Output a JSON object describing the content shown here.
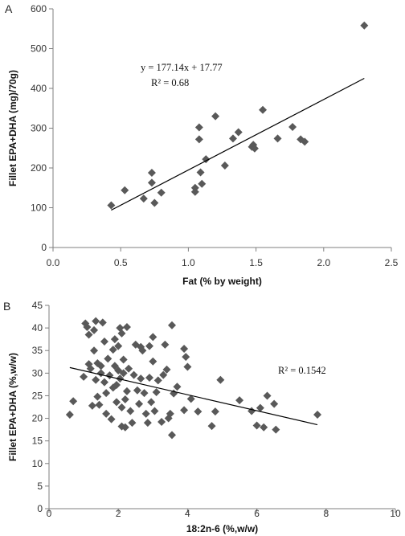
{
  "chart_data": [
    {
      "type": "scatter",
      "panel_label": "A",
      "xlabel": "Fat (% by weight)",
      "ylabel": "Fillet EPA+DHA  (mg)/70g)",
      "xlim": [
        0,
        2.5
      ],
      "ylim": [
        0,
        600
      ],
      "xticks": [
        0,
        0.5,
        1,
        1.5,
        2,
        2.5
      ],
      "yticks": [
        0,
        100,
        200,
        300,
        400,
        500,
        600
      ],
      "xtick_labels": [
        "0.0",
        "0.5",
        "1.0",
        "1.5",
        "2.0",
        "2.5"
      ],
      "ytick_labels": [
        "0",
        "100",
        "200",
        "300",
        "400",
        "500",
        "600"
      ],
      "grid": false,
      "marker": "diamond",
      "marker_color": "#595959",
      "equation": "y = 177.14x + 17.77",
      "r2": "R² = 0.68",
      "trendline": {
        "slope": 177.14,
        "intercept": 17.77,
        "x_range": [
          0.43,
          2.3
        ]
      },
      "points": [
        [
          0.43,
          106
        ],
        [
          0.53,
          144
        ],
        [
          0.67,
          123
        ],
        [
          0.73,
          188
        ],
        [
          0.73,
          163
        ],
        [
          0.75,
          112
        ],
        [
          0.8,
          138
        ],
        [
          1.05,
          150
        ],
        [
          1.05,
          140
        ],
        [
          1.08,
          302
        ],
        [
          1.08,
          272
        ],
        [
          1.09,
          189
        ],
        [
          1.1,
          160
        ],
        [
          1.13,
          222
        ],
        [
          1.2,
          330
        ],
        [
          1.27,
          206
        ],
        [
          1.33,
          274
        ],
        [
          1.37,
          290
        ],
        [
          1.47,
          253
        ],
        [
          1.48,
          258
        ],
        [
          1.49,
          249
        ],
        [
          1.55,
          346
        ],
        [
          1.66,
          274
        ],
        [
          1.77,
          303
        ],
        [
          1.83,
          272
        ],
        [
          1.86,
          266
        ],
        [
          2.3,
          558
        ]
      ]
    },
    {
      "type": "scatter",
      "panel_label": "B",
      "xlabel": "18:2n-6 (%,w/w)",
      "ylabel": "Fillet EPA+DHA (%,w/w)",
      "xlim": [
        0,
        10
      ],
      "ylim": [
        0,
        45
      ],
      "xticks": [
        0,
        2,
        4,
        6,
        8,
        10
      ],
      "yticks": [
        0,
        5,
        10,
        15,
        20,
        25,
        30,
        35,
        40,
        45
      ],
      "xtick_labels": [
        "0",
        "2",
        "4",
        "6",
        "8",
        "10"
      ],
      "ytick_labels": [
        "0",
        "5",
        "10",
        "15",
        "20",
        "25",
        "30",
        "35",
        "40",
        "45"
      ],
      "grid": false,
      "marker": "diamond",
      "marker_color": "#595959",
      "r2": "R² = 0.1542",
      "trendline": {
        "slope": -1.77,
        "intercept": 32.3,
        "x_range": [
          0.6,
          7.75
        ]
      },
      "points": [
        [
          0.6,
          20.8
        ],
        [
          0.7,
          23.8
        ],
        [
          1.0,
          29.2
        ],
        [
          1.05,
          41.0
        ],
        [
          1.1,
          40.2
        ],
        [
          1.15,
          38.5
        ],
        [
          1.15,
          32.0
        ],
        [
          1.2,
          31.0
        ],
        [
          1.25,
          22.8
        ],
        [
          1.3,
          35.0
        ],
        [
          1.3,
          39.5
        ],
        [
          1.35,
          41.5
        ],
        [
          1.35,
          28.5
        ],
        [
          1.4,
          24.8
        ],
        [
          1.4,
          32.2
        ],
        [
          1.45,
          23.0
        ],
        [
          1.5,
          31.6
        ],
        [
          1.5,
          30.0
        ],
        [
          1.55,
          41.2
        ],
        [
          1.6,
          37.0
        ],
        [
          1.6,
          28.0
        ],
        [
          1.65,
          25.6
        ],
        [
          1.65,
          21.0
        ],
        [
          1.7,
          33.2
        ],
        [
          1.75,
          29.5
        ],
        [
          1.8,
          19.8
        ],
        [
          1.85,
          26.8
        ],
        [
          1.85,
          35.2
        ],
        [
          1.9,
          37.5
        ],
        [
          1.9,
          31.6
        ],
        [
          1.95,
          23.6
        ],
        [
          1.95,
          27.4
        ],
        [
          2.0,
          36.0
        ],
        [
          2.0,
          30.6
        ],
        [
          2.05,
          40.0
        ],
        [
          2.05,
          28.8
        ],
        [
          2.1,
          38.8
        ],
        [
          2.1,
          22.4
        ],
        [
          2.1,
          18.2
        ],
        [
          2.15,
          33.0
        ],
        [
          2.15,
          30.0
        ],
        [
          2.2,
          24.2
        ],
        [
          2.2,
          18.0
        ],
        [
          2.25,
          40.2
        ],
        [
          2.25,
          26.0
        ],
        [
          2.3,
          31.0
        ],
        [
          2.35,
          21.6
        ],
        [
          2.4,
          19.0
        ],
        [
          2.45,
          29.6
        ],
        [
          2.5,
          36.3
        ],
        [
          2.55,
          26.2
        ],
        [
          2.6,
          23.2
        ],
        [
          2.65,
          35.8
        ],
        [
          2.65,
          28.8
        ],
        [
          2.7,
          35.0
        ],
        [
          2.75,
          25.6
        ],
        [
          2.8,
          21.0
        ],
        [
          2.85,
          19.0
        ],
        [
          2.9,
          29.0
        ],
        [
          2.9,
          36.0
        ],
        [
          2.95,
          23.6
        ],
        [
          3.0,
          38.0
        ],
        [
          3.0,
          32.6
        ],
        [
          3.05,
          21.6
        ],
        [
          3.1,
          25.8
        ],
        [
          3.15,
          28.4
        ],
        [
          3.25,
          19.2
        ],
        [
          3.3,
          29.6
        ],
        [
          3.35,
          36.3
        ],
        [
          3.4,
          30.8
        ],
        [
          3.45,
          20.0
        ],
        [
          3.5,
          21.0
        ],
        [
          3.55,
          40.6
        ],
        [
          3.55,
          16.3
        ],
        [
          3.6,
          25.5
        ],
        [
          3.7,
          27.0
        ],
        [
          3.9,
          35.4
        ],
        [
          3.95,
          33.6
        ],
        [
          4.0,
          31.4
        ],
        [
          3.9,
          21.8
        ],
        [
          4.1,
          24.3
        ],
        [
          4.3,
          21.5
        ],
        [
          4.95,
          28.5
        ],
        [
          4.7,
          18.3
        ],
        [
          4.8,
          21.5
        ],
        [
          5.5,
          24.0
        ],
        [
          5.85,
          21.6
        ],
        [
          6.0,
          18.4
        ],
        [
          6.1,
          22.3
        ],
        [
          6.2,
          18.0
        ],
        [
          6.3,
          25.0
        ],
        [
          6.5,
          23.2
        ],
        [
          6.55,
          17.5
        ],
        [
          7.75,
          20.8
        ]
      ]
    }
  ]
}
